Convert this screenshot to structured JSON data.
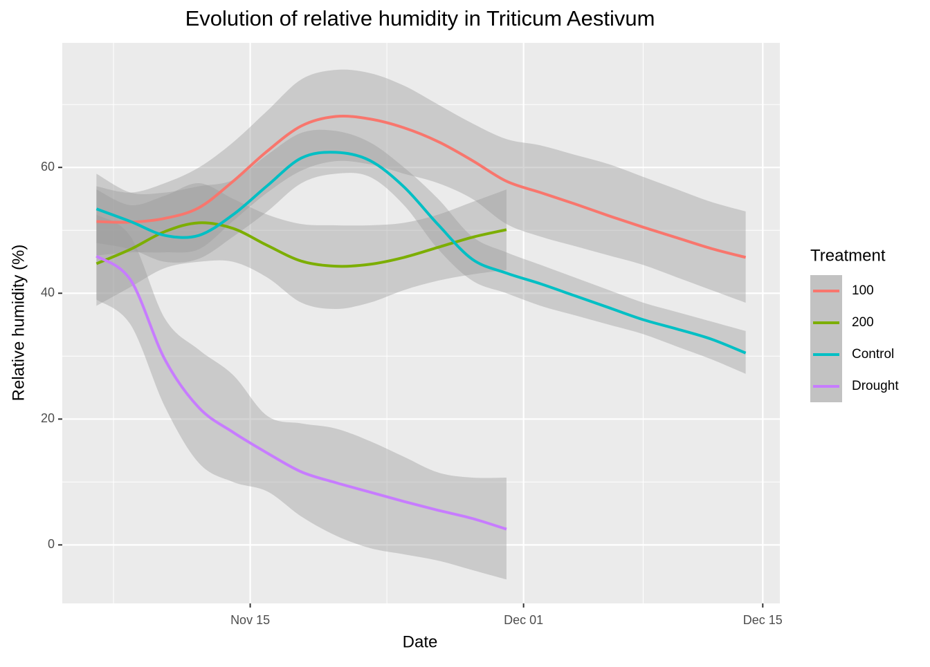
{
  "chart_data": {
    "type": "line",
    "title": "Evolution of relative humidity in Triticum Aestivum",
    "xlabel": "Date",
    "ylabel": "Relative humidity (%)",
    "legend_title": "Treatment",
    "x": [
      "Nov 06",
      "Nov 08",
      "Nov 10",
      "Nov 12",
      "Nov 14",
      "Nov 16",
      "Nov 18",
      "Nov 20",
      "Nov 22",
      "Nov 24",
      "Nov 26",
      "Nov 28",
      "Nov 30",
      "Dec 02",
      "Dec 04",
      "Dec 06",
      "Dec 08",
      "Dec 10",
      "Dec 12",
      "Dec 14"
    ],
    "xlim": [
      "Nov 04",
      "Dec 16"
    ],
    "xticks": [
      "Nov 15",
      "Dec 01",
      "Dec 15"
    ],
    "xminorticks": [
      "Nov 07",
      "Nov 23",
      "Dec 08"
    ],
    "ylim": [
      -9.3,
      79.8
    ],
    "yticks": [
      0,
      20,
      40,
      60
    ],
    "yminorticks": [
      10,
      30,
      50,
      70
    ],
    "grid": true,
    "legend": "right",
    "series": [
      {
        "name": "100",
        "color": "#F8766D",
        "values": [
          51.4,
          51.3,
          51.9,
          53.6,
          57.8,
          62.6,
          66.6,
          68.1,
          67.7,
          66.3,
          64.1,
          61.1,
          57.8,
          56.0,
          54.2,
          52.3,
          50.5,
          48.8,
          47.1,
          45.7
        ],
        "upper": [
          57,
          56,
          57.5,
          60,
          64,
          69,
          74,
          75.5,
          75,
          73,
          70,
          67,
          64.5,
          63.5,
          62,
          60.5,
          58.5,
          56.5,
          54.5,
          53
        ],
        "lower": [
          46,
          46.5,
          46.5,
          47,
          51.5,
          56,
          59.5,
          61,
          60.5,
          59,
          57.5,
          55,
          51,
          49,
          47.5,
          46,
          44.5,
          42.5,
          40.5,
          38.5
        ]
      },
      {
        "name": "200",
        "color": "#7CAE00",
        "values": [
          44.7,
          47.0,
          49.8,
          51.2,
          50.3,
          47.6,
          45.1,
          44.3,
          44.6,
          45.7,
          47.3,
          48.9,
          50.1,
          null,
          null,
          null,
          null,
          null,
          null,
          null
        ],
        "upper": [
          56.5,
          54,
          55.5,
          57.5,
          55,
          52.5,
          51,
          50.8,
          50.8,
          51.2,
          52.5,
          54.5,
          56.5,
          null,
          null,
          null,
          null,
          null,
          null,
          null
        ],
        "lower": [
          38,
          41,
          44,
          45,
          45,
          42.5,
          38.5,
          37.5,
          38.5,
          40.5,
          42,
          43,
          43.7,
          null,
          null,
          null,
          null,
          null,
          null,
          null
        ]
      },
      {
        "name": "Control",
        "color": "#00BFC4",
        "values": [
          53.4,
          51.4,
          49.2,
          49.2,
          52.5,
          57.1,
          61.5,
          62.4,
          61.1,
          56.9,
          50.9,
          45.4,
          43.2,
          41.5,
          39.6,
          37.7,
          35.8,
          34.3,
          32.7,
          30.5
        ],
        "upper": [
          59,
          56,
          56,
          57,
          58,
          62,
          65.5,
          65.8,
          64,
          60,
          55,
          49,
          46.5,
          44.5,
          42.5,
          40.5,
          38.5,
          37,
          35.5,
          34
        ],
        "lower": [
          48,
          47,
          45,
          45.5,
          49,
          53,
          57.5,
          59,
          58.5,
          54,
          47,
          42,
          40,
          38,
          36.5,
          35,
          33.5,
          31.5,
          29.5,
          27.2
        ]
      },
      {
        "name": "Drought",
        "color": "#C77CFF",
        "values": [
          45.9,
          42.1,
          29.5,
          21.8,
          17.9,
          14.6,
          11.6,
          9.9,
          8.4,
          6.9,
          5.5,
          4.2,
          2.5,
          null,
          null,
          null,
          null,
          null,
          null,
          null
        ],
        "upper": [
          52.5,
          49,
          36,
          31,
          27,
          20.5,
          19.3,
          18.5,
          16.5,
          14,
          11.5,
          10.7,
          10.7,
          null,
          null,
          null,
          null,
          null,
          null,
          null
        ],
        "lower": [
          39,
          35,
          22,
          13,
          10,
          8.5,
          4.5,
          1.5,
          -0.5,
          -1.5,
          -2.5,
          -4,
          -5.5,
          null,
          null,
          null,
          null,
          null,
          null,
          null
        ]
      }
    ]
  }
}
